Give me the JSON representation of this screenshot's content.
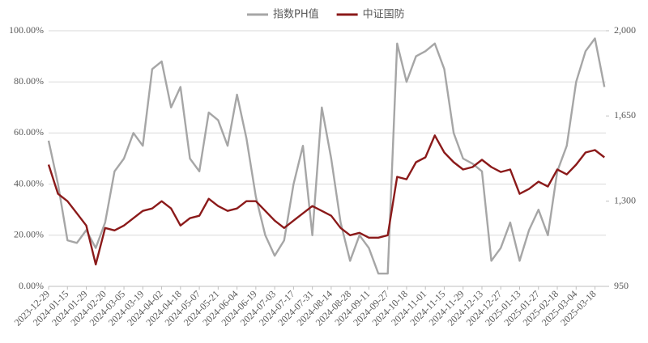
{
  "chart_data": {
    "type": "line",
    "categories": [
      "2023-12-29",
      null,
      "2024-01-15",
      null,
      "2024-01-29",
      null,
      "2024-02-20",
      null,
      "2024-03-05",
      null,
      "2024-03-19",
      null,
      "2024-04-02",
      null,
      "2024-04-18",
      null,
      "2024-05-07",
      null,
      "2024-05-21",
      null,
      "2024-06-04",
      null,
      "2024-06-19",
      null,
      "2024-07-03",
      null,
      "2024-07-17",
      null,
      "2024-07-31",
      null,
      "2024-08-14",
      null,
      "2024-08-28",
      null,
      "2024-09-11",
      null,
      "2024-09-27",
      null,
      "2024-10-18",
      null,
      "2024-11-01",
      null,
      "2024-11-15",
      null,
      "2024-11-29",
      null,
      "2024-12-13",
      null,
      "2024-12-27",
      null,
      "2025-01-13",
      null,
      "2025-01-27",
      null,
      "2025-02-18",
      null,
      "2025-03-04",
      null,
      "2025-03-18",
      null
    ],
    "series": [
      {
        "name": "指数PH值",
        "color": "#a6a6a6",
        "axis": "y",
        "values": [
          57,
          40,
          18,
          17,
          22,
          15,
          25,
          45,
          50,
          60,
          55,
          85,
          88,
          70,
          78,
          50,
          45,
          68,
          65,
          55,
          75,
          58,
          35,
          20,
          12,
          18,
          40,
          55,
          20,
          70,
          50,
          25,
          10,
          20,
          15,
          5,
          5,
          95,
          80,
          90,
          92,
          95,
          85,
          60,
          50,
          48,
          45,
          10,
          15,
          25,
          10,
          22,
          30,
          20,
          45,
          55,
          80,
          92,
          97,
          78
        ]
      },
      {
        "name": "中证国防",
        "color": "#8b1a1a",
        "axis": "y2",
        "values": [
          1450,
          1330,
          1300,
          1250,
          1200,
          1040,
          1190,
          1180,
          1200,
          1230,
          1260,
          1270,
          1300,
          1270,
          1200,
          1230,
          1240,
          1310,
          1280,
          1260,
          1270,
          1300,
          1300,
          1260,
          1220,
          1190,
          1220,
          1250,
          1280,
          1260,
          1240,
          1190,
          1160,
          1170,
          1150,
          1150,
          1160,
          1400,
          1390,
          1460,
          1480,
          1570,
          1500,
          1460,
          1430,
          1440,
          1470,
          1440,
          1420,
          1430,
          1330,
          1350,
          1380,
          1360,
          1430,
          1410,
          1450,
          1500,
          1510,
          1480
        ]
      }
    ],
    "ylim": [
      0,
      100
    ],
    "yticks": [
      {
        "value": 0,
        "label": "0.00%"
      },
      {
        "value": 20,
        "label": "20.00%"
      },
      {
        "value": 40,
        "label": "40.00%"
      },
      {
        "value": 60,
        "label": "60.00%"
      },
      {
        "value": 80,
        "label": "80.00%"
      },
      {
        "value": 100,
        "label": "100.00%"
      }
    ],
    "y2lim": [
      950,
      2000
    ],
    "y2ticks": [
      950,
      {
        "value": 1300,
        "label": "1,300"
      },
      {
        "value": 1650,
        "label": "1,650"
      },
      {
        "value": 2000,
        "label": "2,000"
      }
    ],
    "grid": true,
    "legend": "top"
  }
}
